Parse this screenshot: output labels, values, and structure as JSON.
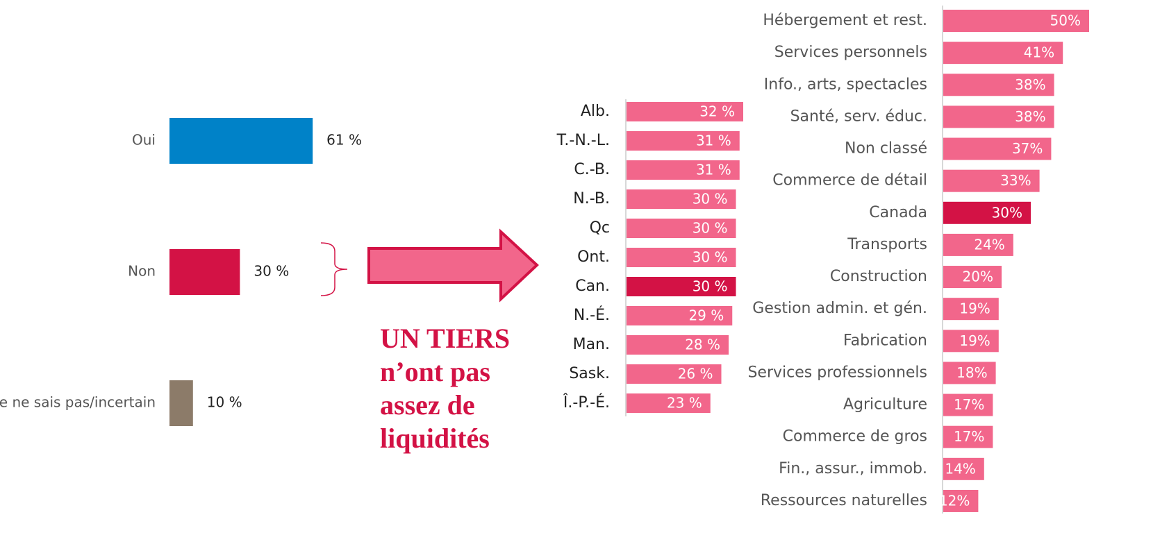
{
  "chart_data": [
    {
      "type": "bar",
      "orientation": "horizontal",
      "categories": [
        "Oui",
        "Non",
        "Je ne sais pas/incertain"
      ],
      "values": [
        61,
        30,
        10
      ],
      "value_labels": [
        "61 %",
        "30 %",
        "10 %"
      ],
      "colors": [
        "#0082c8",
        "#d31245",
        "#8c7b69"
      ]
    },
    {
      "type": "bar",
      "orientation": "horizontal",
      "annotation": [
        "UN TIERS",
        "n’ont pas",
        "assez de",
        "liquidités"
      ],
      "categories": [
        "Alb.",
        "T.-N.-L.",
        "C.-B.",
        "N.-B.",
        "Qc",
        "Ont.",
        "Can.",
        "N.-É.",
        "Man.",
        "Sask.",
        "Î.-P.-É."
      ],
      "values": [
        32,
        31,
        31,
        30,
        30,
        30,
        30,
        29,
        28,
        26,
        23
      ],
      "value_labels": [
        "32 %",
        "31 %",
        "31 %",
        "30 %",
        "30 %",
        "30 %",
        "30 %",
        "29 %",
        "28 %",
        "26 %",
        "23 %"
      ],
      "colors": [
        "#f2668b",
        "#f2668b",
        "#f2668b",
        "#f2668b",
        "#f2668b",
        "#f2668b",
        "#d31245",
        "#f2668b",
        "#f2668b",
        "#f2668b",
        "#f2668b"
      ]
    },
    {
      "type": "bar",
      "orientation": "horizontal",
      "categories": [
        "Hébergement et rest.",
        "Services personnels",
        "Info., arts, spectacles",
        "Santé, serv. éduc.",
        "Non classé",
        "Commerce de détail",
        "Canada",
        "Transports",
        "Construction",
        "Gestion admin. et gén.",
        "Fabrication",
        "Services professionnels",
        "Agriculture",
        "Commerce de gros",
        "Fin., assur., immob.",
        "Ressources naturelles"
      ],
      "values": [
        50,
        41,
        38,
        38,
        37,
        33,
        30,
        24,
        20,
        19,
        19,
        18,
        17,
        17,
        14,
        12
      ],
      "value_labels": [
        "50%",
        "41%",
        "38%",
        "38%",
        "37%",
        "33%",
        "30%",
        "24%",
        "20%",
        "19%",
        "19%",
        "18%",
        "17%",
        "17%",
        "14%",
        "12%"
      ],
      "colors": [
        "#f2668b",
        "#f2668b",
        "#f2668b",
        "#f2668b",
        "#f2668b",
        "#f2668b",
        "#d31245",
        "#f2668b",
        "#f2668b",
        "#f2668b",
        "#f2668b",
        "#f2668b",
        "#f2668b",
        "#f2668b",
        "#f2668b",
        "#f2668b"
      ]
    }
  ]
}
